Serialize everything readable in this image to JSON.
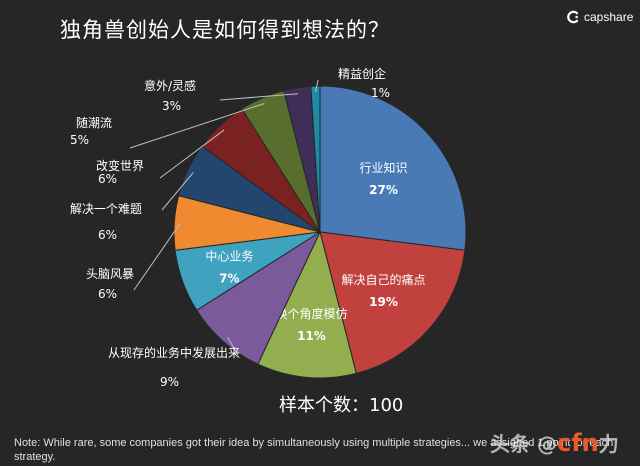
{
  "header": {
    "title": "独角兽创始人是如何得到想法的？",
    "brand": "capshare"
  },
  "colors": {
    "background": "#262626",
    "leader": "#bfbfbf"
  },
  "chart_data": {
    "type": "pie",
    "title": "独角兽创始人是如何得到想法的？",
    "start_angle_deg": 0,
    "direction": "clockwise",
    "slices": [
      {
        "label": "行业知识",
        "value": 27,
        "value_label": "27%",
        "color": "#4a7ab5",
        "label_position": "inside"
      },
      {
        "label": "解决自己的痛点",
        "value": 19,
        "value_label": "19%",
        "color": "#c0413e",
        "label_position": "inside"
      },
      {
        "label": "换个角度模仿",
        "value": 11,
        "value_label": "11%",
        "color": "#93ae4f",
        "label_position": "inside"
      },
      {
        "label": "从现存的业务中发展出来",
        "value": 9,
        "value_label": "9%",
        "color": "#7b5a9c",
        "label_position": "outside"
      },
      {
        "label": "中心业务",
        "value": 7,
        "value_label": "7%",
        "color": "#3fa2bf",
        "label_position": "inside"
      },
      {
        "label": "头脑风暴",
        "value": 6,
        "value_label": "6%",
        "color": "#f08a30",
        "label_position": "outside"
      },
      {
        "label": "解决一个难题",
        "value": 6,
        "value_label": "6%",
        "color": "#23466f",
        "label_position": "outside"
      },
      {
        "label": "改变世界",
        "value": 6,
        "value_label": "6%",
        "color": "#7a2222",
        "label_position": "outside"
      },
      {
        "label": "随潮流",
        "value": 5,
        "value_label": "5%",
        "color": "#586e2e",
        "label_position": "outside"
      },
      {
        "label": "意外/灵感",
        "value": 3,
        "value_label": "3%",
        "color": "#3e2e58",
        "label_position": "outside"
      },
      {
        "label": "精益创企",
        "value": 1,
        "value_label": "1%",
        "color": "#1f8aa6",
        "label_position": "outside"
      }
    ]
  },
  "sample_size": "样本个数：100",
  "note": "Note:  While rare, some companies got their idea by simultaneously using multiple strategies... we assigned 1 point for each strategy.",
  "watermark": {
    "prefix": "头条 @",
    "logo": "cfn",
    "suffix": "力"
  }
}
